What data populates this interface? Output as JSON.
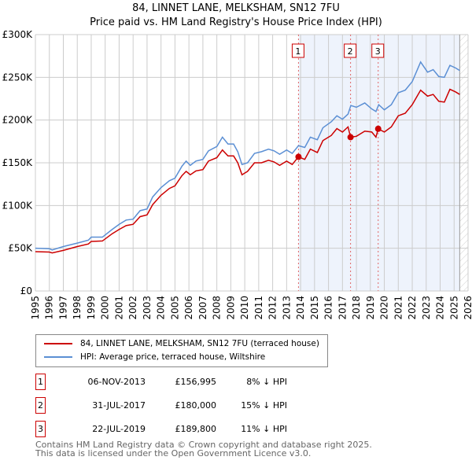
{
  "chart_data": {
    "type": "line",
    "title": "84, LINNET LANE, MELKSHAM, SN12 7FU",
    "subtitle": "Price paid vs. HM Land Registry's House Price Index (HPI)",
    "xlim": [
      1995,
      2026
    ],
    "ylim": [
      0,
      300000
    ],
    "x_ticks": [
      "1995",
      "1996",
      "1997",
      "1998",
      "1999",
      "2000",
      "2001",
      "2002",
      "2003",
      "2004",
      "2005",
      "2006",
      "2007",
      "2008",
      "2009",
      "2010",
      "2011",
      "2012",
      "2013",
      "2014",
      "2015",
      "2016",
      "2017",
      "2018",
      "2019",
      "2020",
      "2021",
      "2022",
      "2023",
      "2024",
      "2025",
      "2026"
    ],
    "y_ticks": [
      {
        "v": 0,
        "label": "£0"
      },
      {
        "v": 50000,
        "label": "£50K"
      },
      {
        "v": 100000,
        "label": "£100K"
      },
      {
        "v": 150000,
        "label": "£150K"
      },
      {
        "v": 200000,
        "label": "£200K"
      },
      {
        "v": 250000,
        "label": "£250K"
      },
      {
        "v": 300000,
        "label": "£300K"
      }
    ],
    "grid": true,
    "shaded_from": 2013.85,
    "hatched_from": 2025.4,
    "series": [
      {
        "name": "84, LINNET LANE, MELKSHAM, SN12 7FU (terraced house)",
        "color": "#cc0000",
        "points": [
          [
            1995,
            46000
          ],
          [
            1996,
            45500
          ],
          [
            1996.2,
            44500
          ],
          [
            1997,
            47500
          ],
          [
            1998,
            52000
          ],
          [
            1998.8,
            55000
          ],
          [
            1999,
            58000
          ],
          [
            1999.8,
            58500
          ],
          [
            2000.5,
            67000
          ],
          [
            2001,
            72000
          ],
          [
            2001.5,
            76500
          ],
          [
            2002,
            78000
          ],
          [
            2002.5,
            87000
          ],
          [
            2003,
            89000
          ],
          [
            2003.4,
            101000
          ],
          [
            2004,
            112000
          ],
          [
            2004.6,
            120000
          ],
          [
            2005,
            123000
          ],
          [
            2005.5,
            135000
          ],
          [
            2005.8,
            140000
          ],
          [
            2006.1,
            136000
          ],
          [
            2006.5,
            140500
          ],
          [
            2007,
            142000
          ],
          [
            2007.4,
            152000
          ],
          [
            2008,
            156000
          ],
          [
            2008.4,
            165000
          ],
          [
            2008.8,
            158000
          ],
          [
            2009.2,
            158000
          ],
          [
            2009.5,
            150000
          ],
          [
            2009.8,
            136000
          ],
          [
            2010.2,
            140000
          ],
          [
            2010.7,
            150000
          ],
          [
            2011.2,
            150000
          ],
          [
            2011.7,
            153000
          ],
          [
            2012.1,
            151000
          ],
          [
            2012.5,
            147000
          ],
          [
            2013,
            152000
          ],
          [
            2013.4,
            148000
          ],
          [
            2013.85,
            156995
          ],
          [
            2014.3,
            154000
          ],
          [
            2014.7,
            166000
          ],
          [
            2015.2,
            162000
          ],
          [
            2015.6,
            176000
          ],
          [
            2016.2,
            182000
          ],
          [
            2016.6,
            190000
          ],
          [
            2017.0,
            186000
          ],
          [
            2017.4,
            192000
          ],
          [
            2017.58,
            180000
          ],
          [
            2018,
            181000
          ],
          [
            2018.6,
            187000
          ],
          [
            2019.1,
            186000
          ],
          [
            2019.4,
            180000
          ],
          [
            2019.56,
            189800
          ],
          [
            2020,
            186000
          ],
          [
            2020.5,
            192000
          ],
          [
            2021,
            205000
          ],
          [
            2021.5,
            208000
          ],
          [
            2022,
            218000
          ],
          [
            2022.6,
            235000
          ],
          [
            2023.1,
            228000
          ],
          [
            2023.5,
            230000
          ],
          [
            2023.9,
            222000
          ],
          [
            2024.3,
            221000
          ],
          [
            2024.7,
            236000
          ],
          [
            2025.1,
            233000
          ],
          [
            2025.4,
            230000
          ]
        ]
      },
      {
        "name": "HPI: Average price, terraced house, Wiltshire",
        "color": "#5b8fd4",
        "points": [
          [
            1995,
            50000
          ],
          [
            1996,
            49500
          ],
          [
            1996.2,
            48000
          ],
          [
            1997,
            52000
          ],
          [
            1998,
            56000
          ],
          [
            1998.8,
            59500
          ],
          [
            1999,
            63000
          ],
          [
            1999.8,
            63000
          ],
          [
            2000.5,
            72000
          ],
          [
            2001,
            78000
          ],
          [
            2001.5,
            83000
          ],
          [
            2002,
            84000
          ],
          [
            2002.5,
            94000
          ],
          [
            2003,
            96000
          ],
          [
            2003.4,
            110000
          ],
          [
            2004,
            121000
          ],
          [
            2004.6,
            129000
          ],
          [
            2005,
            132000
          ],
          [
            2005.5,
            146000
          ],
          [
            2005.8,
            152000
          ],
          [
            2006.1,
            147000
          ],
          [
            2006.5,
            152000
          ],
          [
            2007,
            154000
          ],
          [
            2007.4,
            164000
          ],
          [
            2008,
            169000
          ],
          [
            2008.4,
            180000
          ],
          [
            2008.8,
            172000
          ],
          [
            2009.2,
            172000
          ],
          [
            2009.5,
            163000
          ],
          [
            2009.8,
            148000
          ],
          [
            2010.2,
            150000
          ],
          [
            2010.7,
            161000
          ],
          [
            2011.2,
            163000
          ],
          [
            2011.7,
            166000
          ],
          [
            2012.1,
            164000
          ],
          [
            2012.5,
            160000
          ],
          [
            2013,
            165000
          ],
          [
            2013.4,
            161000
          ],
          [
            2013.85,
            170000
          ],
          [
            2014.3,
            168000
          ],
          [
            2014.7,
            180000
          ],
          [
            2015.2,
            177000
          ],
          [
            2015.6,
            191000
          ],
          [
            2016.2,
            198000
          ],
          [
            2016.6,
            205000
          ],
          [
            2017.0,
            201000
          ],
          [
            2017.4,
            207000
          ],
          [
            2017.6,
            217000
          ],
          [
            2018,
            215000
          ],
          [
            2018.6,
            220000
          ],
          [
            2019.1,
            213000
          ],
          [
            2019.4,
            210000
          ],
          [
            2019.6,
            218000
          ],
          [
            2020,
            212000
          ],
          [
            2020.5,
            218000
          ],
          [
            2021,
            232000
          ],
          [
            2021.5,
            235000
          ],
          [
            2022,
            245000
          ],
          [
            2022.6,
            268000
          ],
          [
            2023.1,
            256000
          ],
          [
            2023.5,
            259000
          ],
          [
            2023.9,
            251000
          ],
          [
            2024.3,
            250000
          ],
          [
            2024.7,
            264000
          ],
          [
            2025.1,
            261000
          ],
          [
            2025.4,
            258000
          ]
        ]
      }
    ],
    "sales": [
      {
        "label": "1",
        "x": 2013.85,
        "value": 156995
      },
      {
        "label": "2",
        "x": 2017.58,
        "value": 180000
      },
      {
        "label": "3",
        "x": 2019.56,
        "value": 189800
      }
    ]
  },
  "legend": {
    "red": "84, LINNET LANE, MELKSHAM, SN12 7FU (terraced house)",
    "blue": "HPI: Average price, terraced house, Wiltshire"
  },
  "table": [
    {
      "num": "1",
      "date": "06-NOV-2013",
      "price": "£156,995",
      "hpi": "8% ↓ HPI"
    },
    {
      "num": "2",
      "date": "31-JUL-2017",
      "price": "£180,000",
      "hpi": "15% ↓ HPI"
    },
    {
      "num": "3",
      "date": "22-JUL-2019",
      "price": "£189,800",
      "hpi": "11% ↓ HPI"
    }
  ],
  "footer": {
    "line1": "Contains HM Land Registry data © Crown copyright and database right 2025.",
    "line2": "This data is licensed under the Open Government Licence v3.0."
  }
}
